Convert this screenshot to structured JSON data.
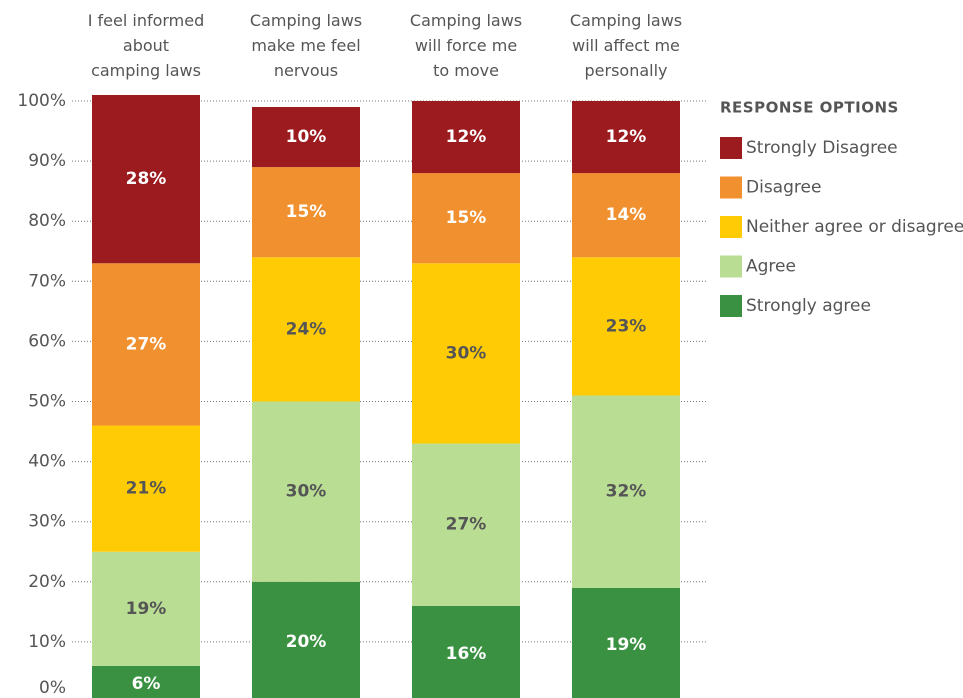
{
  "chart_data": {
    "type": "stacked_bar",
    "categories": [
      "I feel informed\nabout\ncamping laws",
      "Camping laws\nmake me feel\nnervous",
      "Camping laws\nwill force me\nto move",
      "Camping laws\nwill affect me\npersonally"
    ],
    "series": [
      {
        "name": "Strongly agree",
        "color": "#3a9142",
        "label_color": "#ffffff",
        "values": [
          6,
          20,
          16,
          19
        ],
        "value_labels": [
          "6%",
          "20%",
          "16%",
          "19%"
        ]
      },
      {
        "name": "Agree",
        "color": "#b9dd93",
        "label_color": "#555555",
        "values": [
          19,
          30,
          27,
          32
        ],
        "value_labels": [
          "19%",
          "30%",
          "27%",
          "32%"
        ]
      },
      {
        "name": "Neither agree or disagree",
        "color": "#ffcb05",
        "label_color": "#555555",
        "values": [
          21,
          24,
          30,
          23
        ],
        "value_labels": [
          "21%",
          "24%",
          "30%",
          "23%"
        ]
      },
      {
        "name": "Disagree",
        "color": "#f0902f",
        "label_color": "#ffffff",
        "values": [
          27,
          15,
          15,
          14
        ],
        "value_labels": [
          "27%",
          "15%",
          "15%",
          "14%"
        ]
      },
      {
        "name": "Strongly Disagree",
        "color": "#9b1b1f",
        "label_color": "#ffffff",
        "values": [
          28,
          10,
          12,
          12
        ],
        "value_labels": [
          "28%",
          "10%",
          "12%",
          "12%"
        ]
      }
    ],
    "legend_title": "RESPONSE OPTIONS",
    "ylim": [
      0,
      100
    ],
    "yticks": [
      {
        "value": 0,
        "label": "0%"
      },
      {
        "value": 10,
        "label": "10%"
      },
      {
        "value": 20,
        "label": "20%"
      },
      {
        "value": 30,
        "label": "30%"
      },
      {
        "value": 40,
        "label": "40%"
      },
      {
        "value": 50,
        "label": "50%"
      },
      {
        "value": 60,
        "label": "60%"
      },
      {
        "value": 70,
        "label": "70%"
      },
      {
        "value": 80,
        "label": "80%"
      },
      {
        "value": 90,
        "label": "90%"
      },
      {
        "value": 100,
        "label": "100%"
      }
    ],
    "grid": true
  }
}
